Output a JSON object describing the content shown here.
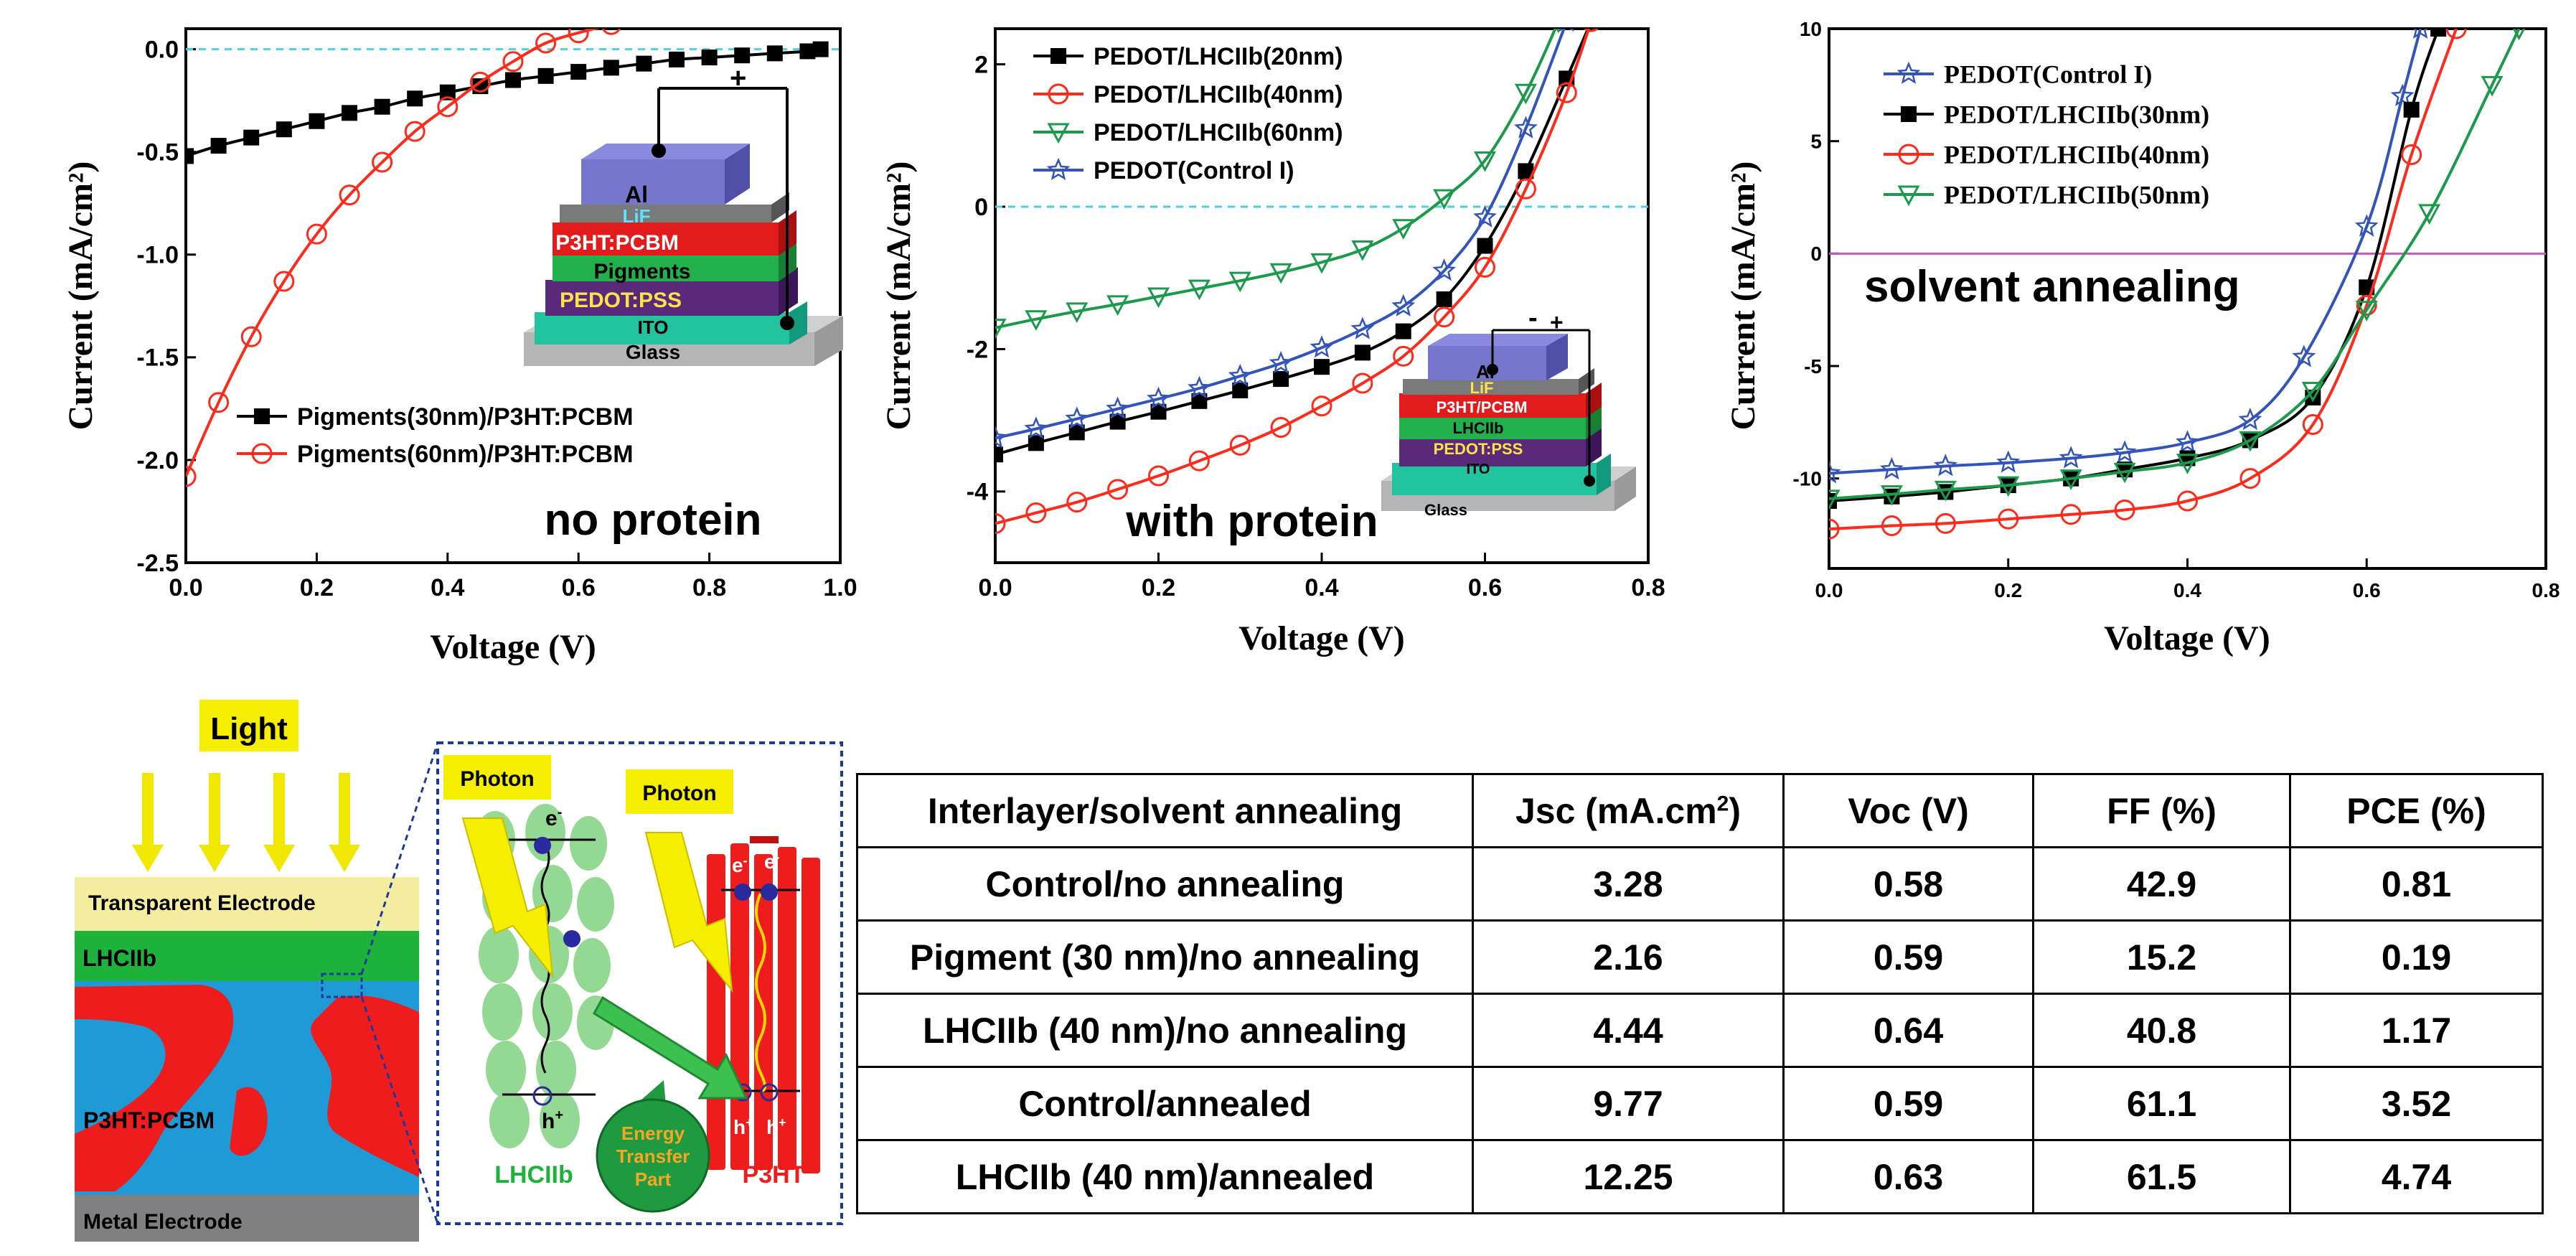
{
  "colors": {
    "black": "#000000",
    "red": "#ff2a1a",
    "green": "#1a9a4a",
    "blue": "#3355bb",
    "cyan": "#4fd0e0",
    "magenta": "#cc55bb",
    "yellow": "#f5ee00",
    "cream": "#f4ec9e",
    "lhc_green": "#1cb23c",
    "pcbm_blue": "#1e9bd7",
    "p3ht_red": "#ee1c1c",
    "metal_gray": "#808080",
    "light_green": "#8ed88e"
  },
  "chart_data": [
    {
      "type": "line",
      "xlabel": "Voltage (V)",
      "ylabel": "Current (mA/cm²)",
      "xlim": [
        0,
        1.0
      ],
      "ylim": [
        -2.5,
        0.1
      ],
      "xticks": [
        "0.0",
        "0.2",
        "0.4",
        "0.6",
        "0.8",
        "1.0"
      ],
      "yticks": [
        "0.0",
        "-0.5",
        "-1.0",
        "-1.5",
        "-2.0",
        "-2.5"
      ],
      "annotation": "no protein",
      "legend_position": "lower-left",
      "series": [
        {
          "name": "Pigments(30nm)/P3HT:PCBM",
          "color": "#000000",
          "marker": "square",
          "x": [
            0.0,
            0.05,
            0.1,
            0.15,
            0.2,
            0.25,
            0.3,
            0.35,
            0.4,
            0.45,
            0.5,
            0.55,
            0.6,
            0.65,
            0.7,
            0.75,
            0.8,
            0.85,
            0.9,
            0.95,
            0.97
          ],
          "y": [
            -0.52,
            -0.47,
            -0.43,
            -0.39,
            -0.35,
            -0.31,
            -0.28,
            -0.24,
            -0.21,
            -0.18,
            -0.15,
            -0.13,
            -0.11,
            -0.09,
            -0.07,
            -0.05,
            -0.04,
            -0.03,
            -0.02,
            -0.01,
            0.0
          ]
        },
        {
          "name": "Pigments(60nm)/P3HT:PCBM",
          "color": "#ff2a1a",
          "marker": "circle",
          "x": [
            0.0,
            0.05,
            0.1,
            0.15,
            0.2,
            0.25,
            0.3,
            0.35,
            0.4,
            0.45,
            0.5,
            0.55,
            0.6,
            0.65
          ],
          "y": [
            -2.08,
            -1.72,
            -1.4,
            -1.13,
            -0.9,
            -0.71,
            -0.55,
            -0.4,
            -0.28,
            -0.16,
            -0.06,
            0.03,
            0.08,
            0.12
          ]
        }
      ]
    },
    {
      "type": "line",
      "xlabel": "Voltage (V)",
      "ylabel": "Current (mA/cm²)",
      "xlim": [
        0,
        0.8
      ],
      "ylim": [
        -5,
        2.5
      ],
      "xticks": [
        "0.0",
        "0.2",
        "0.4",
        "0.6",
        "0.8"
      ],
      "yticks": [
        "2",
        "0",
        "-2",
        "-4"
      ],
      "annotation": "with protein",
      "legend_position": "top-left",
      "series": [
        {
          "name": "PEDOT/LHCIIb(20nm)",
          "color": "#000000",
          "marker": "square",
          "x": [
            0.0,
            0.05,
            0.1,
            0.15,
            0.2,
            0.25,
            0.3,
            0.35,
            0.4,
            0.45,
            0.5,
            0.55,
            0.6,
            0.65,
            0.7,
            0.73
          ],
          "y": [
            -3.48,
            -3.32,
            -3.17,
            -3.02,
            -2.88,
            -2.73,
            -2.58,
            -2.42,
            -2.25,
            -2.05,
            -1.75,
            -1.3,
            -0.55,
            0.5,
            1.8,
            2.6
          ]
        },
        {
          "name": "PEDOT/LHCIIb(40nm)",
          "color": "#ff2a1a",
          "marker": "circle",
          "x": [
            0.0,
            0.05,
            0.1,
            0.15,
            0.2,
            0.25,
            0.3,
            0.35,
            0.4,
            0.45,
            0.5,
            0.55,
            0.6,
            0.65,
            0.7,
            0.73
          ],
          "y": [
            -4.45,
            -4.3,
            -4.15,
            -3.97,
            -3.78,
            -3.57,
            -3.35,
            -3.1,
            -2.8,
            -2.48,
            -2.1,
            -1.55,
            -0.85,
            0.25,
            1.6,
            2.6
          ]
        },
        {
          "name": "PEDOT/LHCIIb(60nm)",
          "color": "#1a9a4a",
          "marker": "triangle-down",
          "x": [
            0.0,
            0.05,
            0.1,
            0.15,
            0.2,
            0.25,
            0.3,
            0.35,
            0.4,
            0.45,
            0.5,
            0.55,
            0.6,
            0.65,
            0.69
          ],
          "y": [
            -1.7,
            -1.58,
            -1.47,
            -1.37,
            -1.26,
            -1.15,
            -1.04,
            -0.92,
            -0.78,
            -0.6,
            -0.3,
            0.12,
            0.65,
            1.6,
            2.6
          ]
        },
        {
          "name": "PEDOT(Control I)",
          "color": "#3355bb",
          "marker": "star",
          "x": [
            0.0,
            0.05,
            0.1,
            0.15,
            0.2,
            0.25,
            0.3,
            0.35,
            0.4,
            0.45,
            0.5,
            0.55,
            0.6,
            0.65,
            0.7
          ],
          "y": [
            -3.25,
            -3.12,
            -2.98,
            -2.84,
            -2.7,
            -2.55,
            -2.38,
            -2.2,
            -1.98,
            -1.72,
            -1.4,
            -0.9,
            -0.15,
            1.1,
            2.6
          ]
        }
      ]
    },
    {
      "type": "line",
      "xlabel": "Voltage (V)",
      "ylabel": "Current (mA/cm²)",
      "xlim": [
        0,
        0.8
      ],
      "ylim": [
        -14,
        10
      ],
      "xticks": [
        "0.0",
        "0.2",
        "0.4",
        "0.6",
        "0.8"
      ],
      "yticks": [
        "10",
        "5",
        "0",
        "-5",
        "-10"
      ],
      "annotation": "solvent annealing",
      "legend_position": "top-left",
      "series": [
        {
          "name": "PEDOT(Control I)",
          "color": "#3355bb",
          "marker": "star",
          "x": [
            0.0,
            0.07,
            0.13,
            0.2,
            0.27,
            0.33,
            0.4,
            0.47,
            0.53,
            0.6,
            0.64,
            0.66
          ],
          "y": [
            -9.77,
            -9.6,
            -9.45,
            -9.3,
            -9.1,
            -8.85,
            -8.4,
            -7.4,
            -4.6,
            1.2,
            7.0,
            10.0
          ]
        },
        {
          "name": "PEDOT/LHCIIb(30nm)",
          "color": "#000000",
          "marker": "square",
          "x": [
            0.0,
            0.07,
            0.13,
            0.2,
            0.27,
            0.33,
            0.4,
            0.47,
            0.54,
            0.6,
            0.65,
            0.68
          ],
          "y": [
            -11.0,
            -10.8,
            -10.6,
            -10.3,
            -10.0,
            -9.6,
            -9.1,
            -8.3,
            -6.4,
            -1.5,
            6.4,
            10.0
          ]
        },
        {
          "name": "PEDOT/LHCIIb(40nm)",
          "color": "#ff2a1a",
          "marker": "circle",
          "x": [
            0.0,
            0.07,
            0.13,
            0.2,
            0.27,
            0.33,
            0.4,
            0.47,
            0.54,
            0.6,
            0.65,
            0.7
          ],
          "y": [
            -12.25,
            -12.1,
            -12.0,
            -11.8,
            -11.6,
            -11.4,
            -11.0,
            -10.0,
            -7.6,
            -2.3,
            4.4,
            10.0
          ]
        },
        {
          "name": "PEDOT/LHCIIb(50nm)",
          "color": "#1a9a4a",
          "marker": "triangle-down",
          "x": [
            0.0,
            0.07,
            0.13,
            0.2,
            0.27,
            0.33,
            0.4,
            0.47,
            0.54,
            0.6,
            0.67,
            0.74,
            0.77
          ],
          "y": [
            -10.9,
            -10.7,
            -10.5,
            -10.3,
            -10.0,
            -9.7,
            -9.3,
            -8.3,
            -6.1,
            -2.5,
            1.8,
            7.5,
            10.0
          ]
        }
      ]
    }
  ],
  "device_stack_1": {
    "layers": [
      "Al",
      "LiF",
      "P3HT:PCBM",
      "Pigments",
      "PEDOT:PSS",
      "ITO",
      "Glass"
    ],
    "minus": "-",
    "plus": "+"
  },
  "device_stack_2": {
    "layers": [
      "Al",
      "LiF",
      "P3HT/PCBM",
      "LHCIIb",
      "PEDOT:PSS",
      "ITO",
      "Glass"
    ],
    "minus": "-",
    "plus": "+"
  },
  "schematic": {
    "light": "Light",
    "transparent_electrode": "Transparent  Electrode",
    "lhciib": "LHCIIb",
    "p3ht_pcbm": "P3HT:PCBM",
    "metal_electrode": "Metal Electrode",
    "photon_left": "Photon",
    "photon_right": "Photon",
    "electron": "e",
    "electron_sup": "-",
    "hole": "h",
    "hole_sup": "+",
    "energy_transfer": [
      "Energy",
      "Transfer",
      "Part"
    ],
    "lhciib_label": "LHCIIb",
    "p3ht_label": "P3HT"
  },
  "table": {
    "headers": [
      "Interlayer/solvent annealing",
      "Jsc (mA.cm2)",
      "Voc (V)",
      "FF (%)",
      "PCE (%)"
    ],
    "header_jsc_base": "Jsc (mA.cm",
    "header_jsc_sup": "2",
    "header_jsc_end": ")",
    "rows": [
      [
        "Control/no annealing",
        "3.28",
        "0.58",
        "42.9",
        "0.81"
      ],
      [
        "Pigment (30 nm)/no annealing",
        "2.16",
        "0.59",
        "15.2",
        "0.19"
      ],
      [
        "LHCIIb (40 nm)/no annealing",
        "4.44",
        "0.64",
        "40.8",
        "1.17"
      ],
      [
        "Control/annealed",
        "9.77",
        "0.59",
        "61.1",
        "3.52"
      ],
      [
        "LHCIIb (40 nm)/annealed",
        "12.25",
        "0.63",
        "61.5",
        "4.74"
      ]
    ]
  }
}
